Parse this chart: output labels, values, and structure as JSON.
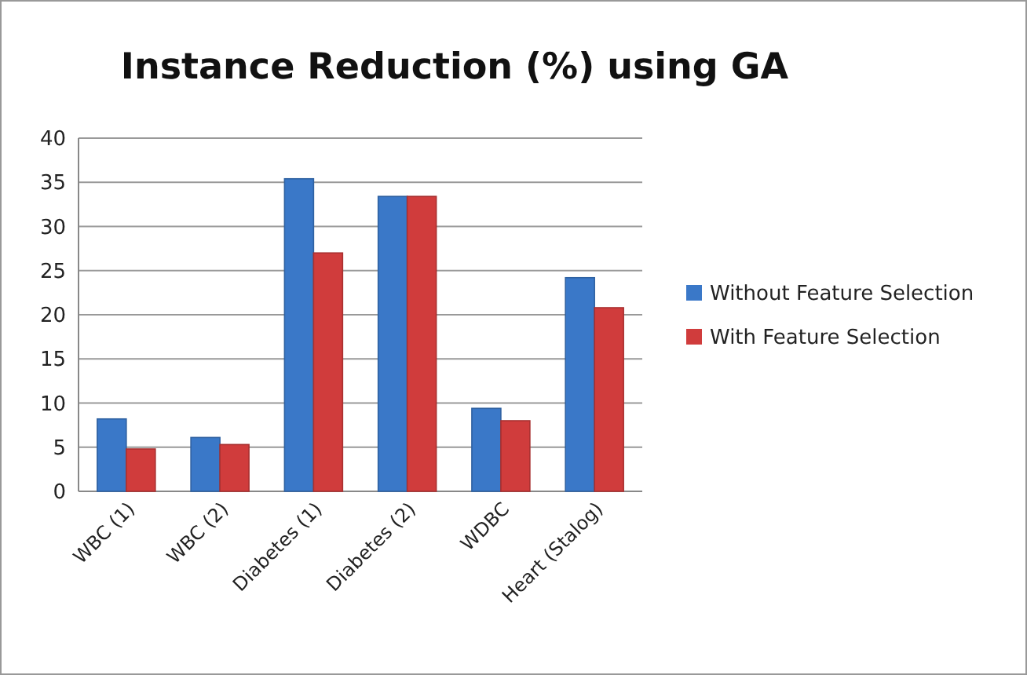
{
  "chart_data": {
    "type": "bar",
    "title": "Instance Reduction (%) using GA",
    "categories": [
      "WBC (1)",
      "WBC (2)",
      "Diabetes  (1)",
      "Diabetes  (2)",
      "WDBC",
      "Heart (Stalog)"
    ],
    "series": [
      {
        "name": "Without Feature Selection",
        "color": "#3a78c8",
        "values": [
          8.2,
          6.1,
          35.4,
          33.4,
          9.4,
          24.2
        ]
      },
      {
        "name": "With Feature Selection",
        "color": "#d03c3c",
        "values": [
          4.8,
          5.3,
          27,
          33.4,
          8,
          20.8
        ]
      }
    ],
    "ylim": [
      0,
      40
    ],
    "yticks": [
      0,
      5,
      10,
      15,
      20,
      25,
      30,
      35,
      40
    ],
    "grid": "y",
    "legend": "right"
  }
}
